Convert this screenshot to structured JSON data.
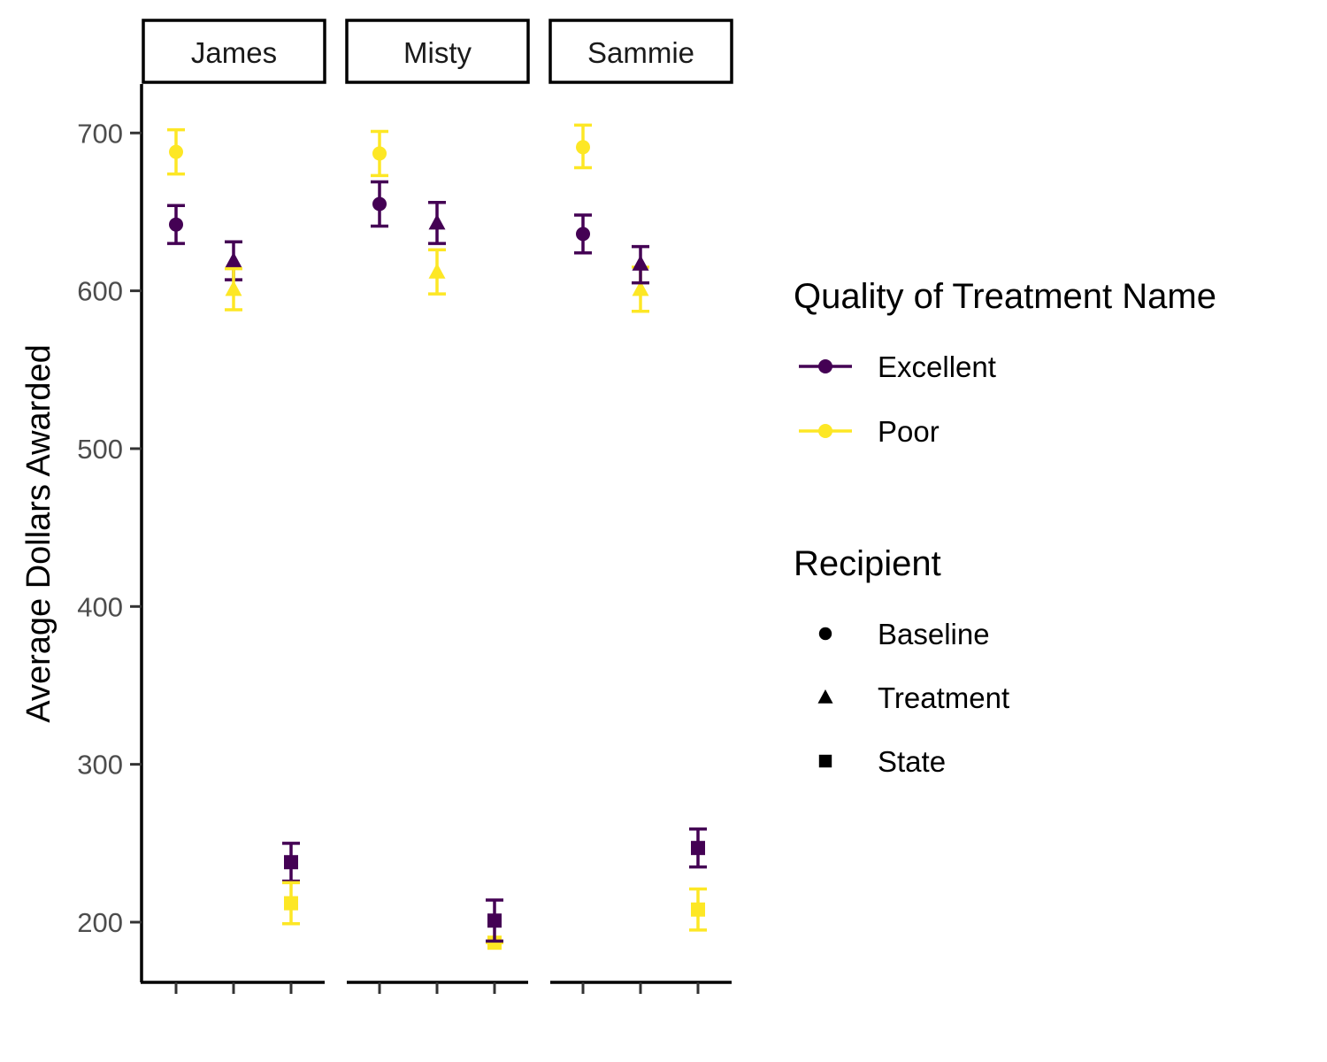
{
  "chart_data": {
    "type": "scatter",
    "title": "",
    "xlabel": "",
    "ylabel": "Average Dollars Awarded",
    "ylim": [
      160,
      730
    ],
    "y_ticks": [
      200,
      300,
      400,
      500,
      600,
      700
    ],
    "grid": false,
    "legend_placement": "right",
    "panels": [
      "James",
      "Misty",
      "Sammie"
    ],
    "recipients": [
      "Baseline",
      "Treatment",
      "State"
    ],
    "color_legend": {
      "title": "Quality of Treatment Name",
      "entries": [
        {
          "name": "Excellent",
          "color": "#440154"
        },
        {
          "name": "Poor",
          "color": "#FDE725"
        }
      ]
    },
    "shape_legend": {
      "title": "Recipient",
      "entries": [
        {
          "name": "Baseline",
          "shape": "circle"
        },
        {
          "name": "Treatment",
          "shape": "triangle"
        },
        {
          "name": "State",
          "shape": "square"
        }
      ]
    },
    "points": [
      {
        "panel": "James",
        "recipient": "Baseline",
        "quality": "Excellent",
        "y": 642,
        "ymin": 630,
        "ymax": 654
      },
      {
        "panel": "James",
        "recipient": "Baseline",
        "quality": "Poor",
        "y": 688,
        "ymin": 674,
        "ymax": 702
      },
      {
        "panel": "James",
        "recipient": "Treatment",
        "quality": "Excellent",
        "y": 619,
        "ymin": 607,
        "ymax": 631
      },
      {
        "panel": "James",
        "recipient": "Treatment",
        "quality": "Poor",
        "y": 601,
        "ymin": 588,
        "ymax": 614
      },
      {
        "panel": "James",
        "recipient": "State",
        "quality": "Excellent",
        "y": 238,
        "ymin": 226,
        "ymax": 250
      },
      {
        "panel": "James",
        "recipient": "State",
        "quality": "Poor",
        "y": 212,
        "ymin": 199,
        "ymax": 225
      },
      {
        "panel": "Misty",
        "recipient": "Baseline",
        "quality": "Excellent",
        "y": 655,
        "ymin": 641,
        "ymax": 669
      },
      {
        "panel": "Misty",
        "recipient": "Baseline",
        "quality": "Poor",
        "y": 687,
        "ymin": 673,
        "ymax": 701
      },
      {
        "panel": "Misty",
        "recipient": "Treatment",
        "quality": "Excellent",
        "y": 643,
        "ymin": 630,
        "ymax": 656
      },
      {
        "panel": "Misty",
        "recipient": "Treatment",
        "quality": "Poor",
        "y": 612,
        "ymin": 598,
        "ymax": 626
      },
      {
        "panel": "Misty",
        "recipient": "State",
        "quality": "Poor",
        "y": 187,
        "ymin": 187,
        "ymax": 188
      },
      {
        "panel": "Misty",
        "recipient": "State",
        "quality": "Excellent",
        "y": 201,
        "ymin": 188,
        "ymax": 214
      },
      {
        "panel": "Sammie",
        "recipient": "Baseline",
        "quality": "Excellent",
        "y": 636,
        "ymin": 624,
        "ymax": 648
      },
      {
        "panel": "Sammie",
        "recipient": "Baseline",
        "quality": "Poor",
        "y": 691,
        "ymin": 678,
        "ymax": 705
      },
      {
        "panel": "Sammie",
        "recipient": "Treatment",
        "quality": "Poor",
        "y": 601,
        "ymin": 587,
        "ymax": 615
      },
      {
        "panel": "Sammie",
        "recipient": "Treatment",
        "quality": "Excellent",
        "y": 617,
        "ymin": 605,
        "ymax": 628
      },
      {
        "panel": "Sammie",
        "recipient": "State",
        "quality": "Excellent",
        "y": 247,
        "ymin": 235,
        "ymax": 259
      },
      {
        "panel": "Sammie",
        "recipient": "State",
        "quality": "Poor",
        "y": 208,
        "ymin": 195,
        "ymax": 221
      }
    ]
  }
}
